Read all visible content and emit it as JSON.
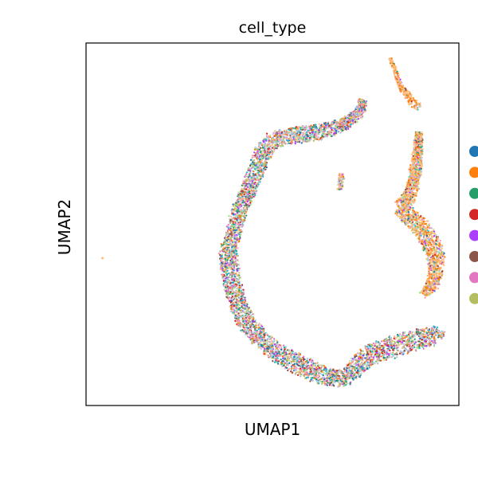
{
  "chart_data": {
    "type": "scatter",
    "title": "cell_type",
    "xlabel": "UMAP1",
    "ylabel": "UMAP2",
    "xlim": [
      0,
      100
    ],
    "ylim": [
      0,
      100
    ],
    "grid": false,
    "axis_ticks": false,
    "legend": {
      "placement": "right",
      "labels_visible": false,
      "colors": [
        "#1f77b4",
        "#ff7f0e",
        "#279e68",
        "#d62728",
        "#aa40fc",
        "#8c564b",
        "#e377c2",
        "#b5bd61"
      ]
    },
    "point_colors": [
      "#1f77b4",
      "#ff7f0e",
      "#279e68",
      "#d62728",
      "#aa40fc",
      "#8c564b",
      "#e377c2",
      "#b5bd61",
      "#17becf",
      "#aec7e8",
      "#ffbb78",
      "#98df8a",
      "#ff9896",
      "#c5b0d5",
      "#c49c94",
      "#f7b6d2",
      "#dbdb8d",
      "#9edae5"
    ],
    "clusters": [
      {
        "name": "main-arc",
        "path": [
          [
            74.2,
            84.3
          ],
          [
            73.5,
            81.0
          ],
          [
            69.3,
            77.6
          ],
          [
            63.2,
            75.5
          ],
          [
            56.0,
            74.5
          ],
          [
            50.6,
            73.5
          ],
          [
            47.7,
            70.3
          ],
          [
            45.6,
            65.0
          ],
          [
            43.6,
            59.5
          ],
          [
            41.2,
            54.0
          ],
          [
            39.6,
            48.5
          ],
          [
            38.1,
            42.0
          ],
          [
            38.9,
            35.0
          ],
          [
            40.5,
            28.5
          ],
          [
            43.2,
            22.5
          ],
          [
            47.2,
            18.0
          ],
          [
            51.3,
            14.5
          ],
          [
            56.6,
            11.5
          ],
          [
            61.9,
            9.0
          ],
          [
            67.0,
            7.5
          ],
          [
            70.6,
            8.2
          ],
          [
            72.7,
            11.0
          ],
          [
            75.5,
            13.5
          ],
          [
            80.0,
            15.5
          ],
          [
            85.1,
            17.0
          ],
          [
            90.0,
            18.5
          ],
          [
            93.6,
            19.0
          ],
          [
            94.9,
            21.0
          ]
        ],
        "widths": [
          2.4,
          3.0,
          4.0,
          4.6,
          5.0,
          5.2,
          5.4,
          5.0,
          4.6,
          4.6,
          4.8,
          5.2,
          5.4,
          5.4,
          5.4,
          5.6,
          5.8,
          6.0,
          6.0,
          5.2,
          5.0,
          5.4,
          6.2,
          6.6,
          6.6,
          6.0,
          5.2,
          3.8
        ],
        "points": 5200,
        "dominant_color_weight": 0.0
      },
      {
        "name": "right-cluster",
        "path": [
          [
            89.3,
            75.5
          ],
          [
            88.9,
            69.5
          ],
          [
            88.3,
            64.0
          ],
          [
            87.5,
            59.5
          ],
          [
            85.8,
            56.0
          ],
          [
            84.0,
            54.5
          ],
          [
            87.0,
            52.0
          ],
          [
            91.0,
            47.5
          ],
          [
            93.6,
            42.5
          ],
          [
            94.0,
            38.5
          ],
          [
            93.0,
            33.5
          ],
          [
            90.4,
            30.5
          ]
        ],
        "widths": [
          2.0,
          3.0,
          3.6,
          3.8,
          4.4,
          4.8,
          5.4,
          5.8,
          5.4,
          4.8,
          4.0,
          2.6
        ],
        "points": 2000,
        "dominant_color_weight": 0.55
      },
      {
        "name": "top-right-strand",
        "path": [
          [
            81.5,
            95.8
          ],
          [
            82.6,
            93.3
          ],
          [
            83.4,
            90.8
          ],
          [
            84.2,
            88.0
          ],
          [
            86.0,
            86.0
          ],
          [
            87.5,
            83.5
          ],
          [
            89.6,
            82.2
          ]
        ],
        "widths": [
          1.0,
          1.2,
          1.2,
          1.6,
          2.2,
          2.6,
          2.4
        ],
        "points": 260,
        "dominant_color_weight": 0.8
      },
      {
        "name": "small-island",
        "path": [
          [
            68.4,
            64.0
          ],
          [
            68.4,
            62.4
          ],
          [
            68.2,
            60.8
          ],
          [
            68.0,
            59.6
          ]
        ],
        "widths": [
          1.2,
          1.6,
          1.6,
          1.2
        ],
        "points": 70,
        "dominant_color_weight": 0.2
      },
      {
        "name": "outlier",
        "path": [
          [
            4.5,
            40.7
          ]
        ],
        "widths": [
          0.3
        ],
        "points": 3,
        "dominant_color_weight": 1.0
      }
    ]
  }
}
